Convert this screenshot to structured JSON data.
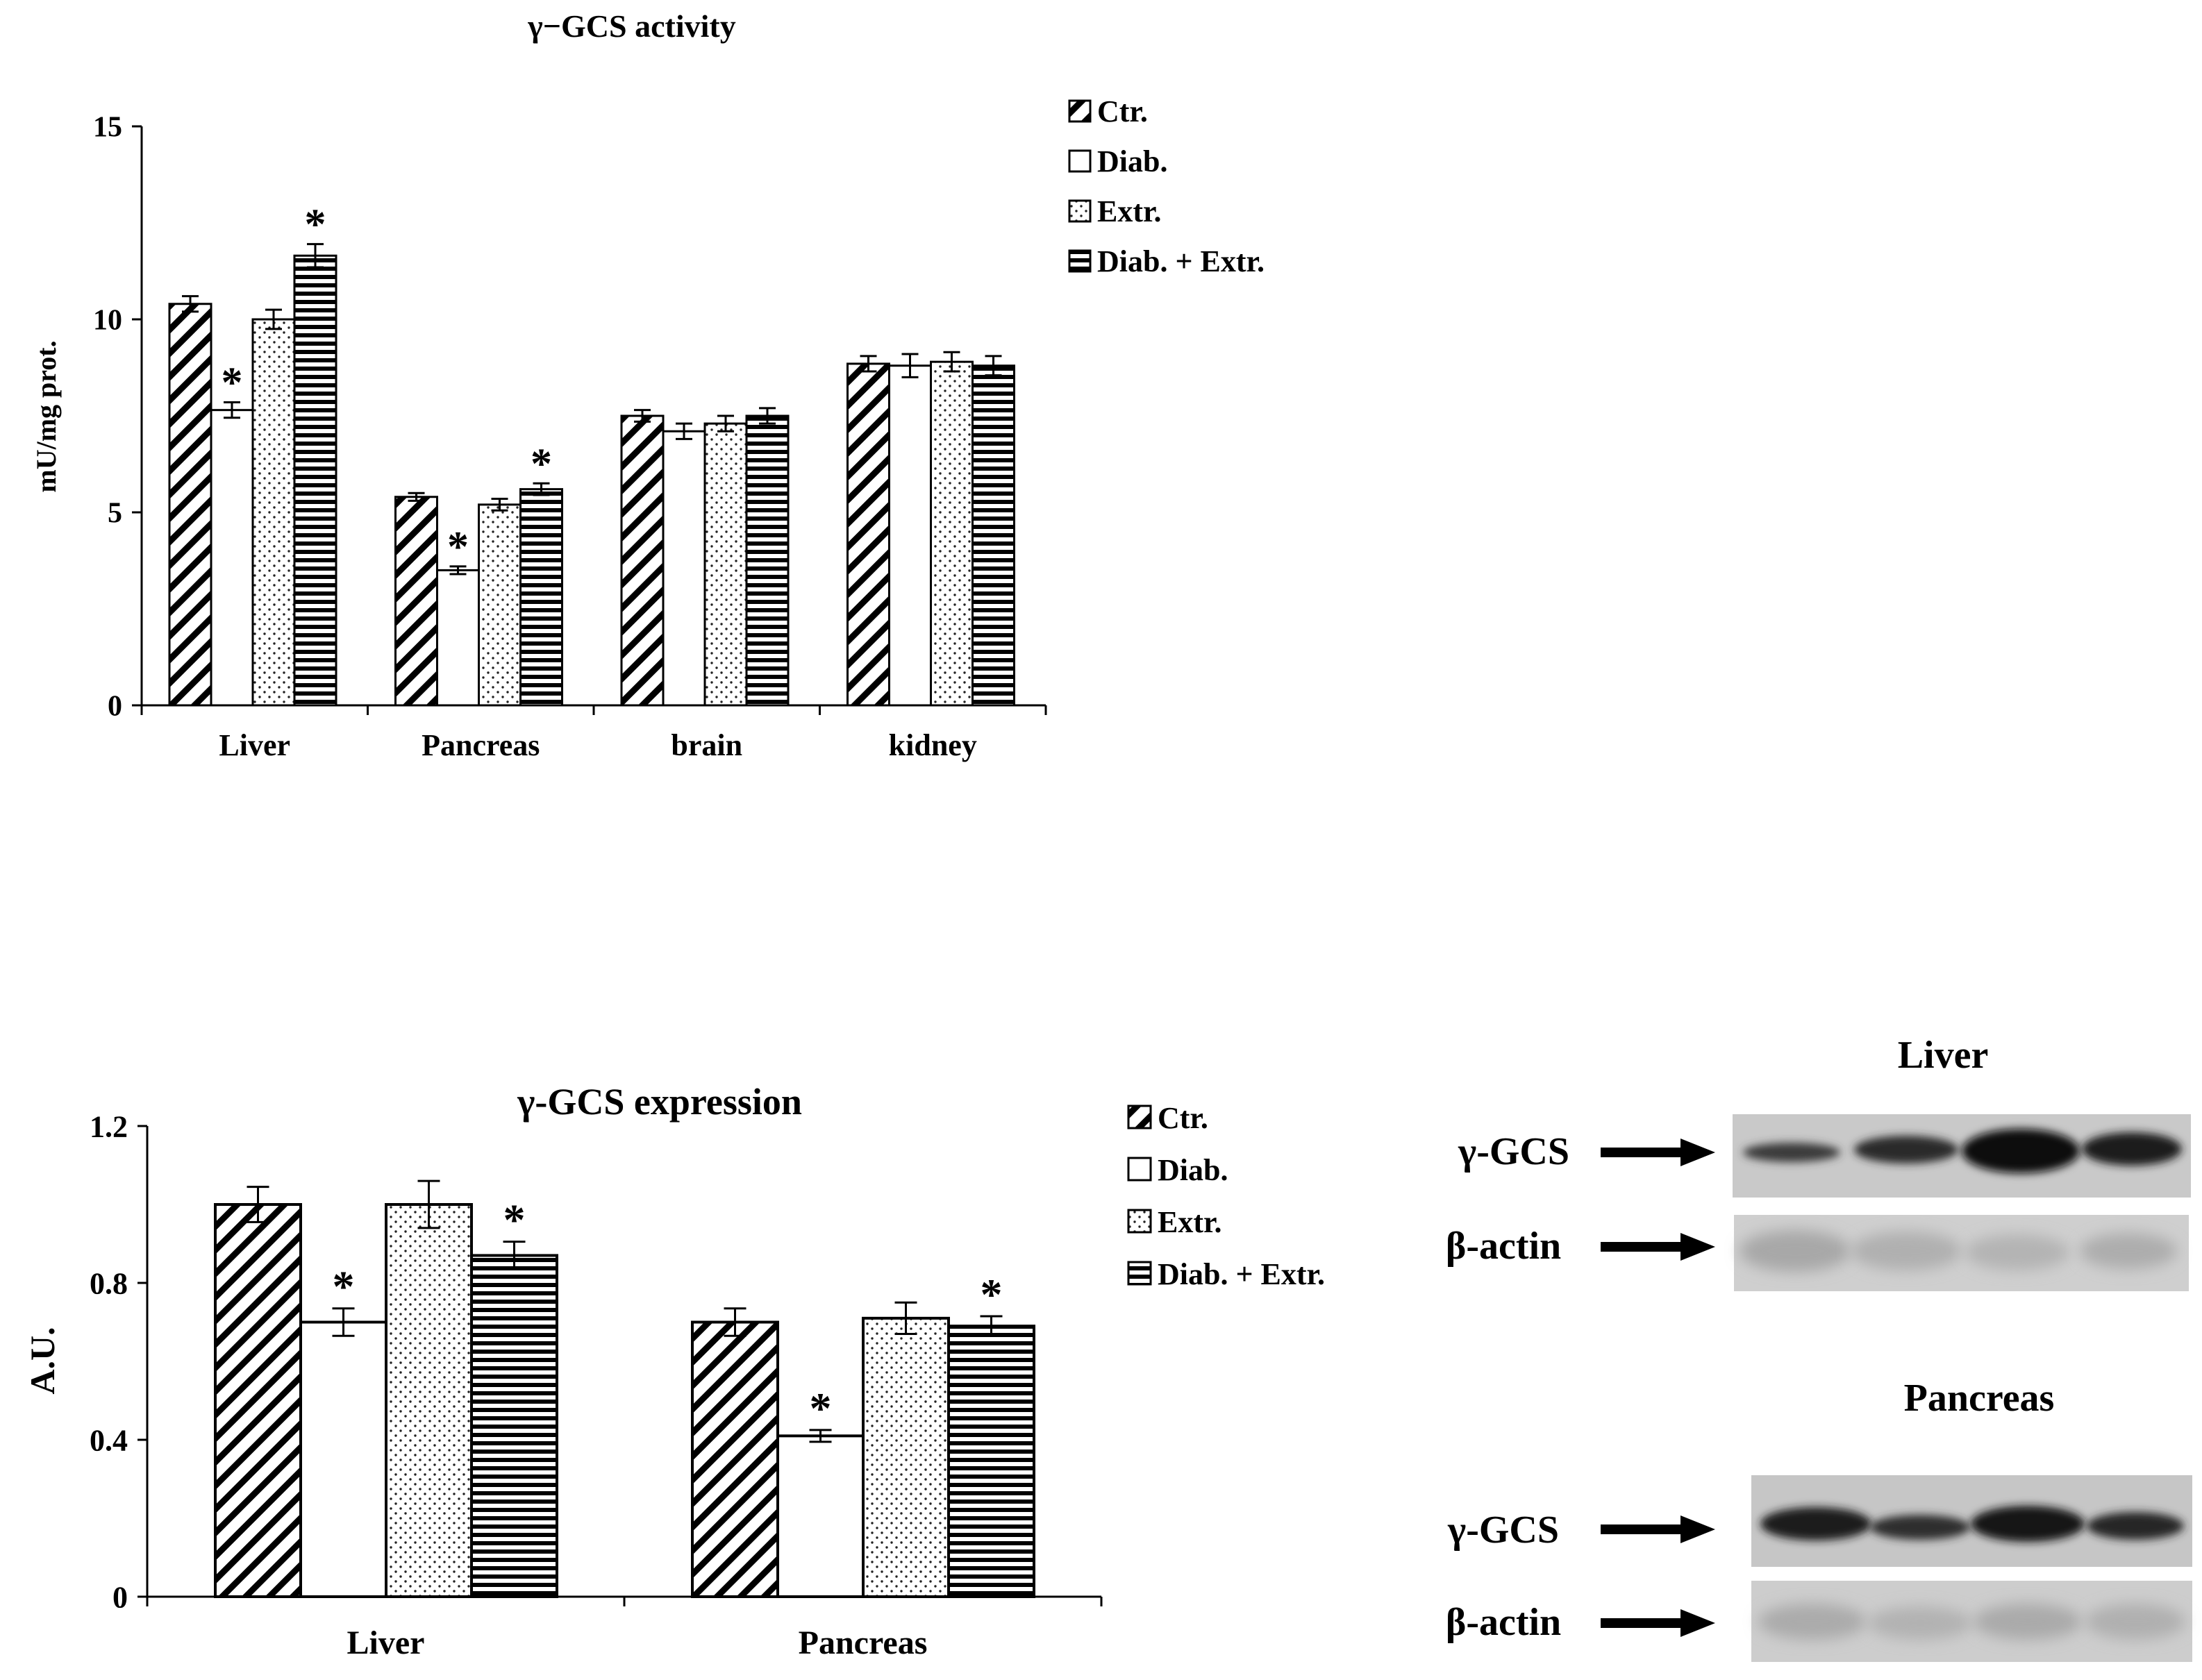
{
  "chart_data": [
    {
      "type": "bar",
      "title": "γ−GCS  activity",
      "ylabel": "mU/mg prot.",
      "xlabel": "",
      "ylim": [
        0,
        15
      ],
      "yticks": [
        0,
        5,
        10,
        15
      ],
      "categories": [
        "Liver",
        "Pancreas",
        "brain",
        "kidney"
      ],
      "legend": [
        "Ctr.",
        "Diab.",
        "Extr.",
        "Diab. + Extr."
      ],
      "legend_position": "top-right",
      "series": [
        {
          "name": "Ctr.",
          "values": [
            10.4,
            5.4,
            7.5,
            8.85
          ],
          "errors": [
            0.2,
            0.1,
            0.15,
            0.2
          ],
          "sig": [
            false,
            false,
            false,
            false
          ]
        },
        {
          "name": "Diab.",
          "values": [
            7.65,
            3.5,
            7.1,
            8.8
          ],
          "errors": [
            0.2,
            0.1,
            0.2,
            0.3
          ],
          "sig": [
            true,
            true,
            false,
            false
          ]
        },
        {
          "name": "Extr.",
          "values": [
            10.0,
            5.2,
            7.3,
            8.9
          ],
          "errors": [
            0.25,
            0.15,
            0.2,
            0.25
          ],
          "sig": [
            false,
            false,
            false,
            false
          ]
        },
        {
          "name": "Diab. + Extr.",
          "values": [
            11.65,
            5.6,
            7.5,
            8.8
          ],
          "errors": [
            0.3,
            0.15,
            0.2,
            0.25
          ],
          "sig": [
            true,
            true,
            false,
            false
          ]
        }
      ]
    },
    {
      "type": "bar",
      "title": "γ-GCS expression",
      "ylabel": "A.U.",
      "xlabel": "",
      "ylim": [
        0,
        1.2
      ],
      "yticks": [
        "0",
        "0.4",
        "0.8",
        "1.2"
      ],
      "categories": [
        "Liver",
        "Pancreas"
      ],
      "legend": [
        "Ctr.",
        "Diab.",
        "Extr.",
        "Diab. + Extr."
      ],
      "legend_position": "top-right",
      "series": [
        {
          "name": "Ctr.",
          "values": [
            1.0,
            0.7
          ],
          "errors": [
            0.045,
            0.035
          ],
          "sig": [
            false,
            false
          ]
        },
        {
          "name": "Diab.",
          "values": [
            0.7,
            0.41
          ],
          "errors": [
            0.035,
            0.015
          ],
          "sig": [
            true,
            true
          ]
        },
        {
          "name": "Extr.",
          "values": [
            1.0,
            0.71
          ],
          "errors": [
            0.06,
            0.04
          ],
          "sig": [
            false,
            false
          ]
        },
        {
          "name": "Diab. + Extr.",
          "values": [
            0.87,
            0.69
          ],
          "errors": [
            0.035,
            0.025
          ],
          "sig": [
            true,
            true
          ]
        }
      ]
    }
  ],
  "sig_mark": "*",
  "blots": {
    "liver": {
      "title": "Liver",
      "row1": "γ-GCS",
      "row2": "β-actin"
    },
    "pancreas": {
      "title": "Pancreas",
      "row1": "γ-GCS",
      "row2": "β-actin"
    }
  }
}
